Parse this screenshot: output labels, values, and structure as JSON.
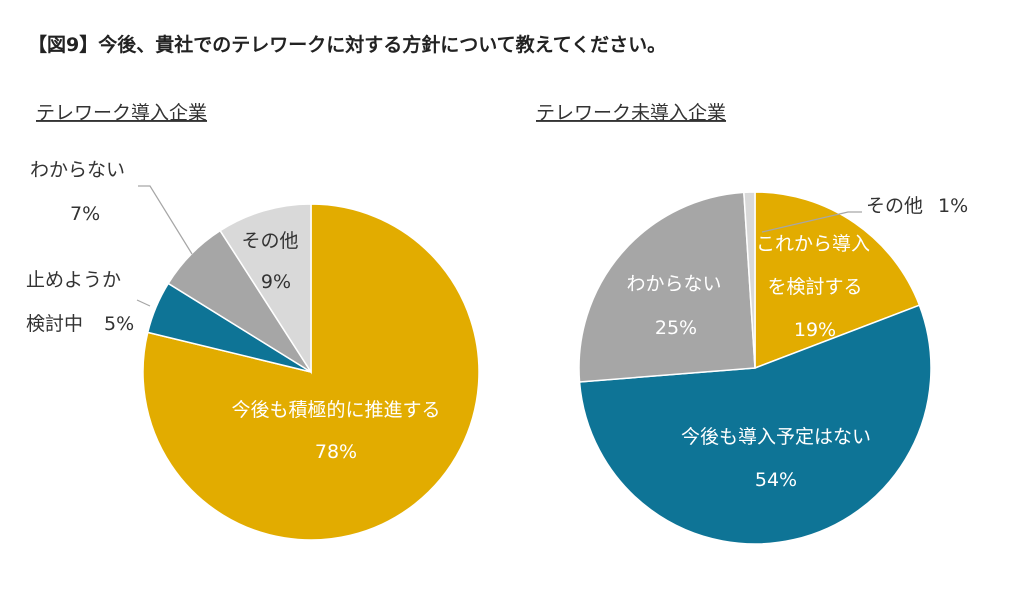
{
  "title": "【図9】今後、貴社でのテレワークに対する方針について教えてください。",
  "chart_data": [
    {
      "type": "pie",
      "subtitle": "テレワーク導入企業",
      "slices": [
        {
          "label": "今後も積極的に推進する",
          "value": 78,
          "value_label": "78%",
          "color": "#E2AC00"
        },
        {
          "label": "止めようか検討中",
          "label_lines": [
            "止めようか",
            "検討中"
          ],
          "value": 5,
          "value_label": "5%",
          "color": "#0E7496"
        },
        {
          "label": "わからない",
          "value": 7,
          "value_label": "7%",
          "color": "#A6A6A6"
        },
        {
          "label": "その他",
          "value": 9,
          "value_label": "9%",
          "color": "#D9D9D9"
        }
      ]
    },
    {
      "type": "pie",
      "subtitle": "テレワーク未導入企業",
      "slices": [
        {
          "label": "これから導入を検討する",
          "label_lines": [
            "これから導入",
            "を検討する"
          ],
          "value": 19,
          "value_label": "19%",
          "color": "#E2AC00"
        },
        {
          "label": "今後も導入予定はない",
          "value": 54,
          "value_label": "54%",
          "color": "#0E7496"
        },
        {
          "label": "わからない",
          "value": 25,
          "value_label": "25%",
          "color": "#A6A6A6"
        },
        {
          "label": "その他",
          "value": 1,
          "value_label": "1%",
          "color": "#D9D9D9"
        }
      ]
    }
  ]
}
